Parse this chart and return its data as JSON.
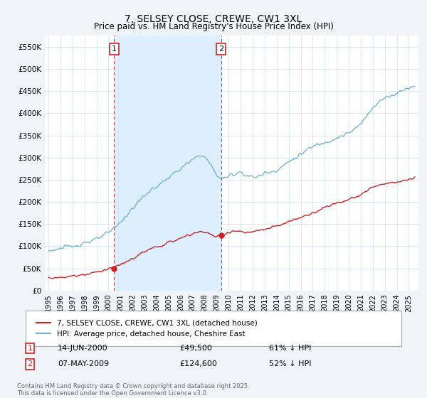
{
  "title": "7, SELSEY CLOSE, CREWE, CW1 3XL",
  "subtitle": "Price paid vs. HM Land Registry's House Price Index (HPI)",
  "ylim": [
    0,
    575000
  ],
  "yticks": [
    0,
    50000,
    100000,
    150000,
    200000,
    250000,
    300000,
    350000,
    400000,
    450000,
    500000,
    550000
  ],
  "ytick_labels": [
    "£0",
    "£50K",
    "£100K",
    "£150K",
    "£200K",
    "£250K",
    "£300K",
    "£350K",
    "£400K",
    "£450K",
    "£500K",
    "£550K"
  ],
  "hpi_color": "#6baed6",
  "price_color": "#cc2222",
  "shade_color": "#ddeeff",
  "sale1_date": "14-JUN-2000",
  "sale1_price": "£49,500",
  "sale1_pct": "61% ↓ HPI",
  "sale2_date": "07-MAY-2009",
  "sale2_price": "£124,600",
  "sale2_pct": "52% ↓ HPI",
  "legend_line1": "7, SELSEY CLOSE, CREWE, CW1 3XL (detached house)",
  "legend_line2": "HPI: Average price, detached house, Cheshire East",
  "footer": "Contains HM Land Registry data © Crown copyright and database right 2025.\nThis data is licensed under the Open Government Licence v3.0.",
  "background_color": "#f0f4f8",
  "plot_bg_color": "#ffffff"
}
